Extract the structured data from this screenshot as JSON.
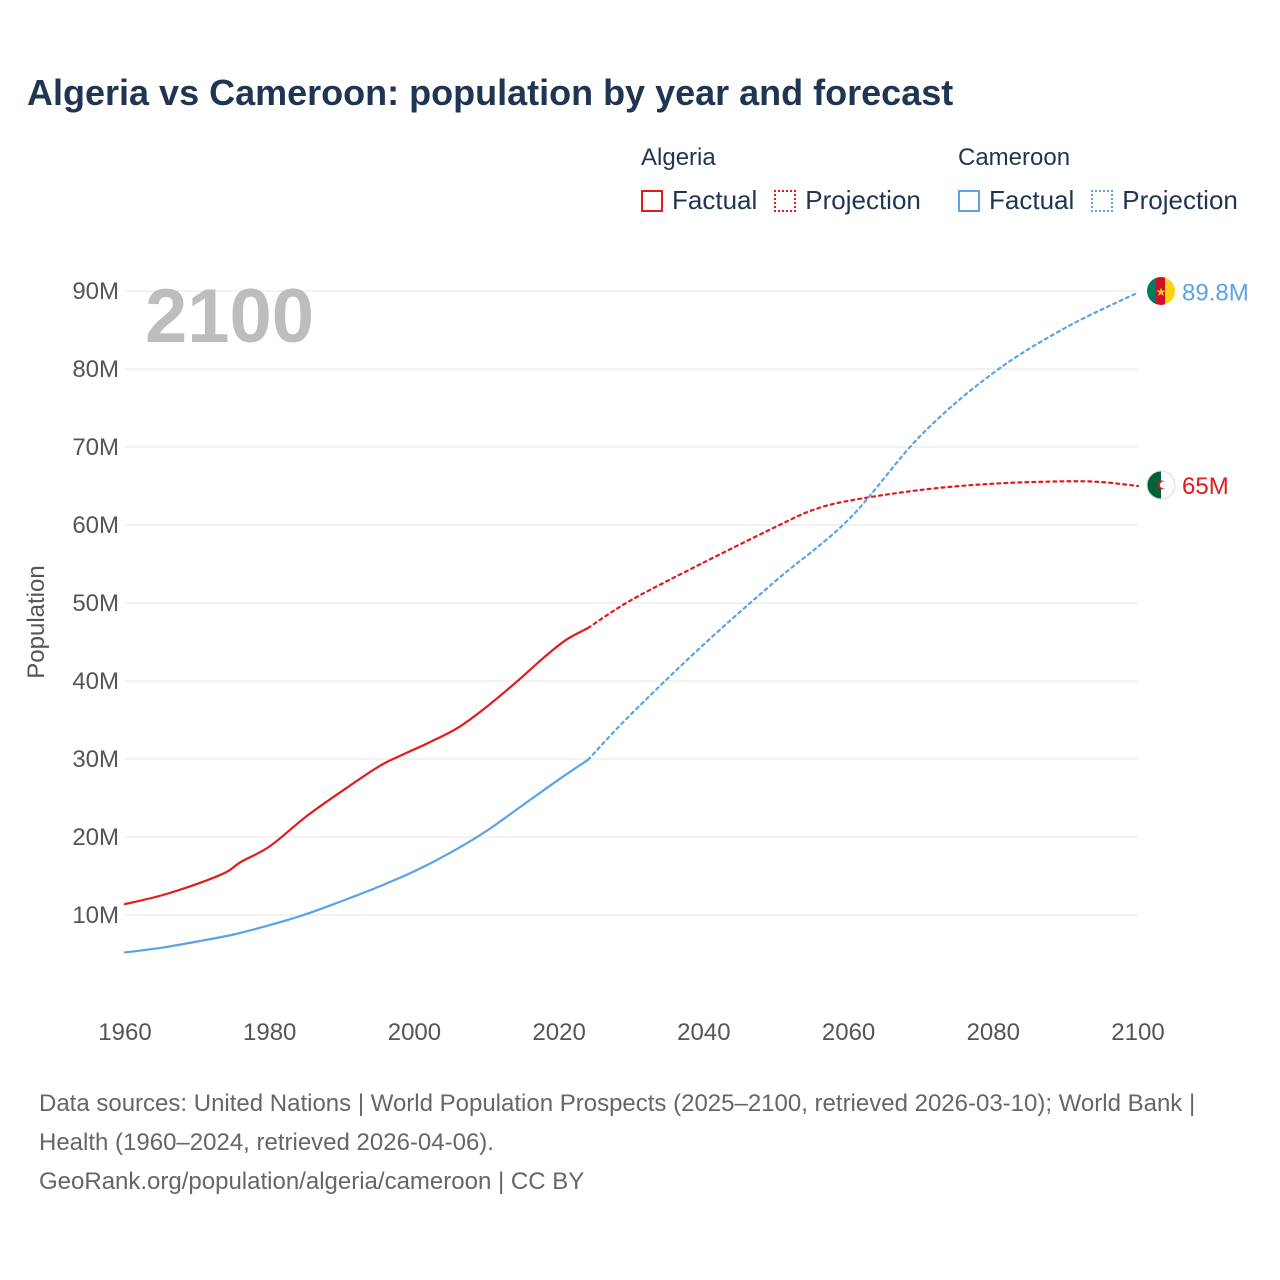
{
  "title": "Algeria vs Cameroon: population by year and forecast",
  "legend": {
    "groups": [
      {
        "name": "Algeria",
        "color": "#e31a1c",
        "items": [
          "Factual",
          "Projection"
        ]
      },
      {
        "name": "Cameroon",
        "color": "#5ba3e6",
        "items": [
          "Factual",
          "Projection"
        ]
      }
    ]
  },
  "year_label": "2100",
  "footer": {
    "sources": "Data sources: United Nations | World Population Prospects (2025–2100, retrieved 2026-03-10); World Bank | Health (1960–2024, retrieved 2026-04-06).",
    "credit": "GeoRank.org/population/algeria/cameroon | CC BY"
  },
  "chart_data": {
    "type": "line",
    "title": "Algeria vs Cameroon: population by year and forecast",
    "xlabel": "",
    "ylabel": "Population",
    "xlim": [
      1960,
      2100
    ],
    "ylim": [
      0,
      90000000
    ],
    "x_ticks": [
      1960,
      1980,
      2000,
      2020,
      2040,
      2060,
      2080,
      2100
    ],
    "x_tick_labels": [
      "1960",
      "1980",
      "2000",
      "2020",
      "2040",
      "2060",
      "2080",
      "2100"
    ],
    "y_ticks": [
      10000000,
      20000000,
      30000000,
      40000000,
      50000000,
      60000000,
      70000000,
      80000000,
      90000000
    ],
    "y_tick_labels": [
      "10M",
      "20M",
      "30M",
      "40M",
      "50M",
      "60M",
      "70M",
      "80M",
      "90M"
    ],
    "grid": true,
    "series": [
      {
        "name": "Algeria",
        "color": "#e31a1c",
        "end_label": "65M",
        "factual": {
          "x": [
            1960,
            1965,
            1970,
            1974,
            1976,
            1980,
            1985,
            1990,
            1995,
            1998,
            2002,
            2006,
            2010,
            2014,
            2018,
            2021,
            2024
          ],
          "values": [
            11400000,
            12500000,
            14000000,
            15500000,
            16800000,
            18800000,
            22600000,
            25900000,
            29000000,
            30400000,
            32100000,
            34000000,
            36700000,
            39800000,
            43100000,
            45300000,
            46800000
          ]
        },
        "projection": {
          "x": [
            2024,
            2030,
            2040,
            2050,
            2055,
            2060,
            2070,
            2080,
            2090,
            2095,
            2100
          ],
          "values": [
            46800000,
            50400000,
            55200000,
            59800000,
            61900000,
            63100000,
            64500000,
            65300000,
            65600000,
            65500000,
            65000000
          ]
        }
      },
      {
        "name": "Cameroon",
        "color": "#5ba3e6",
        "end_label": "89.8M",
        "factual": {
          "x": [
            1960,
            1965,
            1970,
            1975,
            1980,
            1985,
            1990,
            1995,
            2000,
            2005,
            2010,
            2015,
            2020,
            2024
          ],
          "values": [
            5200000,
            5800000,
            6600000,
            7500000,
            8700000,
            10100000,
            11800000,
            13600000,
            15600000,
            18000000,
            20800000,
            24100000,
            27400000,
            29900000
          ]
        },
        "projection": {
          "x": [
            2024,
            2030,
            2040,
            2050,
            2060,
            2070,
            2080,
            2090,
            2100
          ],
          "values": [
            29900000,
            35800000,
            44700000,
            52900000,
            60700000,
            71500000,
            79500000,
            85300000,
            89800000
          ]
        }
      }
    ]
  }
}
